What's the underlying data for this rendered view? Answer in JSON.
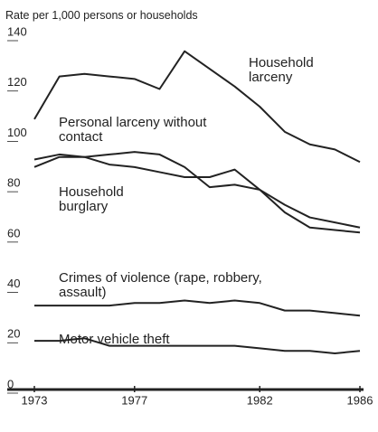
{
  "chart_data": {
    "type": "line",
    "y_axis_label": "Rate per 1,000 persons or households",
    "x": [
      1973,
      1974,
      1975,
      1976,
      1977,
      1978,
      1979,
      1980,
      1981,
      1982,
      1983,
      1984,
      1985,
      1986
    ],
    "xlim": [
      1973,
      1986
    ],
    "xticks": [
      1973,
      1977,
      1982,
      1986
    ],
    "ylim": [
      0,
      140
    ],
    "yticks": [
      0,
      20,
      40,
      60,
      80,
      100,
      120,
      140
    ],
    "series": [
      {
        "name": "Household larceny",
        "color": "#222222",
        "values": [
          107,
          124,
          125,
          124,
          123,
          119,
          134,
          127,
          120,
          112,
          102,
          97,
          95,
          90
        ]
      },
      {
        "name": "Personal larceny without contact",
        "color": "#222222",
        "values": [
          91,
          93,
          92,
          93,
          94,
          93,
          88,
          80,
          81,
          79,
          73,
          68,
          66,
          64
        ]
      },
      {
        "name": "Household burglary",
        "color": "#222222",
        "values": [
          88,
          92,
          92,
          89,
          88,
          86,
          84,
          84,
          87,
          79,
          70,
          64,
          63,
          62
        ]
      },
      {
        "name": "Crimes of violence (rape, robbery, assault)",
        "color": "#222222",
        "values": [
          33,
          33,
          33,
          33,
          34,
          34,
          35,
          34,
          35,
          34,
          31,
          31,
          30,
          29
        ]
      },
      {
        "name": "Motor vehicle theft",
        "color": "#222222",
        "values": [
          19,
          19,
          20,
          17,
          17,
          17,
          17,
          17,
          17,
          16,
          15,
          15,
          14,
          15
        ]
      }
    ]
  }
}
